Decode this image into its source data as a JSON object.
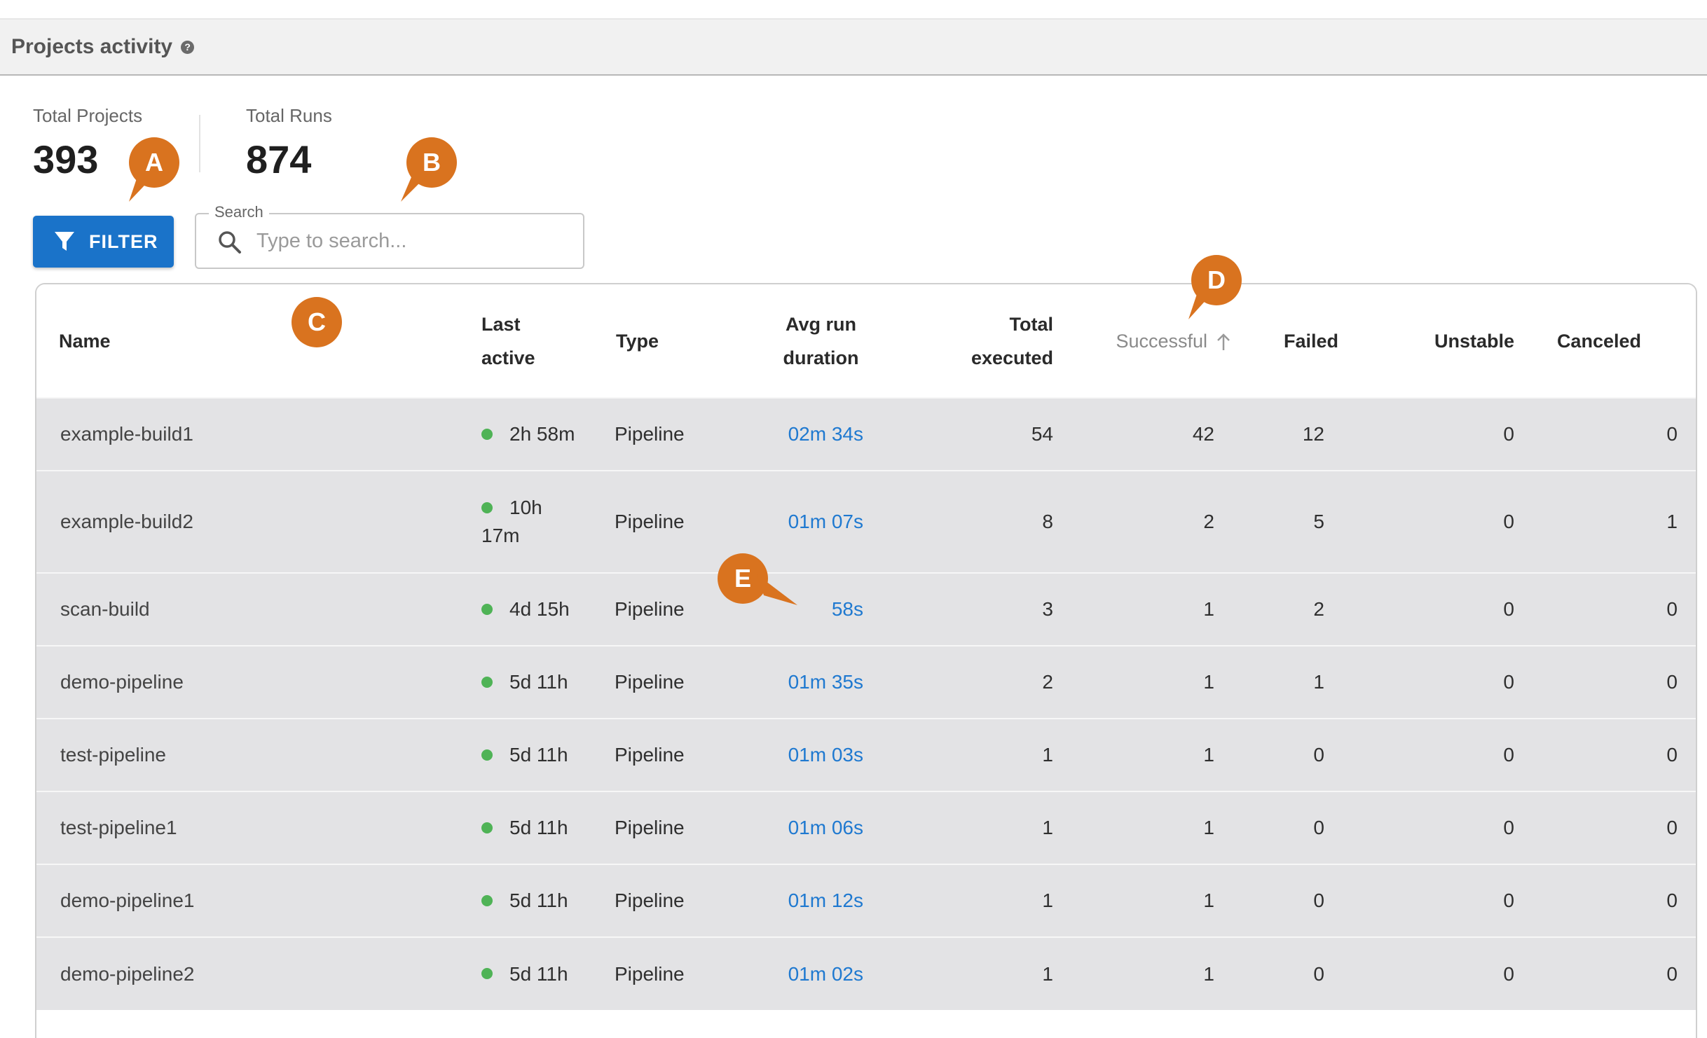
{
  "header": {
    "title": "Projects activity",
    "help_icon": "help-circle-icon"
  },
  "stats": {
    "total_projects": {
      "label": "Total Projects",
      "value": "393"
    },
    "total_runs": {
      "label": "Total Runs",
      "value": "874"
    }
  },
  "toolbar": {
    "filter_label": "FILTER",
    "filter_icon": "filter-funnel-icon"
  },
  "search": {
    "legend": "Search",
    "placeholder": "Type to search...",
    "value": "",
    "icon": "search-icon"
  },
  "markers": {
    "a": "A",
    "b": "B",
    "c": "C",
    "d": "D",
    "e": "E",
    "color": "#d9731f"
  },
  "table": {
    "columns": {
      "name": "Name",
      "last_active_1": "Last",
      "last_active_2": "active",
      "type": "Type",
      "avg_1": "Avg run",
      "avg_2": "duration",
      "total_1": "Total",
      "total_2": "executed",
      "successful": "Successful",
      "failed": "Failed",
      "unstable": "Unstable",
      "canceled": "Canceled"
    },
    "sort": {
      "column": "Successful",
      "direction": "ascending"
    },
    "rows": [
      {
        "name": "example-build1",
        "last_active": "2h 58m",
        "last_active_l1": "",
        "last_active_l2": "",
        "type": "Pipeline",
        "avg": "02m 34s",
        "total": "54",
        "successful": "42",
        "failed": "12",
        "unstable": "0",
        "canceled": "0"
      },
      {
        "name": "example-build2",
        "last_active": "",
        "last_active_l1": "10h",
        "last_active_l2": "17m",
        "type": "Pipeline",
        "avg": "01m 07s",
        "total": "8",
        "successful": "2",
        "failed": "5",
        "unstable": "0",
        "canceled": "1"
      },
      {
        "name": "scan-build",
        "last_active": "4d 15h",
        "last_active_l1": "",
        "last_active_l2": "",
        "type": "Pipeline",
        "avg": "58s",
        "total": "3",
        "successful": "1",
        "failed": "2",
        "unstable": "0",
        "canceled": "0"
      },
      {
        "name": "demo-pipeline",
        "last_active": "5d 11h",
        "last_active_l1": "",
        "last_active_l2": "",
        "type": "Pipeline",
        "avg": "01m 35s",
        "total": "2",
        "successful": "1",
        "failed": "1",
        "unstable": "0",
        "canceled": "0"
      },
      {
        "name": "test-pipeline",
        "last_active": "5d 11h",
        "last_active_l1": "",
        "last_active_l2": "",
        "type": "Pipeline",
        "avg": "01m 03s",
        "total": "1",
        "successful": "1",
        "failed": "0",
        "unstable": "0",
        "canceled": "0"
      },
      {
        "name": "test-pipeline1",
        "last_active": "5d 11h",
        "last_active_l1": "",
        "last_active_l2": "",
        "type": "Pipeline",
        "avg": "01m 06s",
        "total": "1",
        "successful": "1",
        "failed": "0",
        "unstable": "0",
        "canceled": "0"
      },
      {
        "name": "demo-pipeline1",
        "last_active": "5d 11h",
        "last_active_l1": "",
        "last_active_l2": "",
        "type": "Pipeline",
        "avg": "01m 12s",
        "total": "1",
        "successful": "1",
        "failed": "0",
        "unstable": "0",
        "canceled": "0"
      },
      {
        "name": "demo-pipeline2",
        "last_active": "5d 11h",
        "last_active_l1": "",
        "last_active_l2": "",
        "type": "Pipeline",
        "avg": "01m 02s",
        "total": "1",
        "successful": "1",
        "failed": "0",
        "unstable": "0",
        "canceled": "0"
      }
    ]
  },
  "colors": {
    "primary": "#1a73c9",
    "link": "#1f79d0",
    "status_active": "#4fb356",
    "row_bg": "#e3e3e5"
  }
}
